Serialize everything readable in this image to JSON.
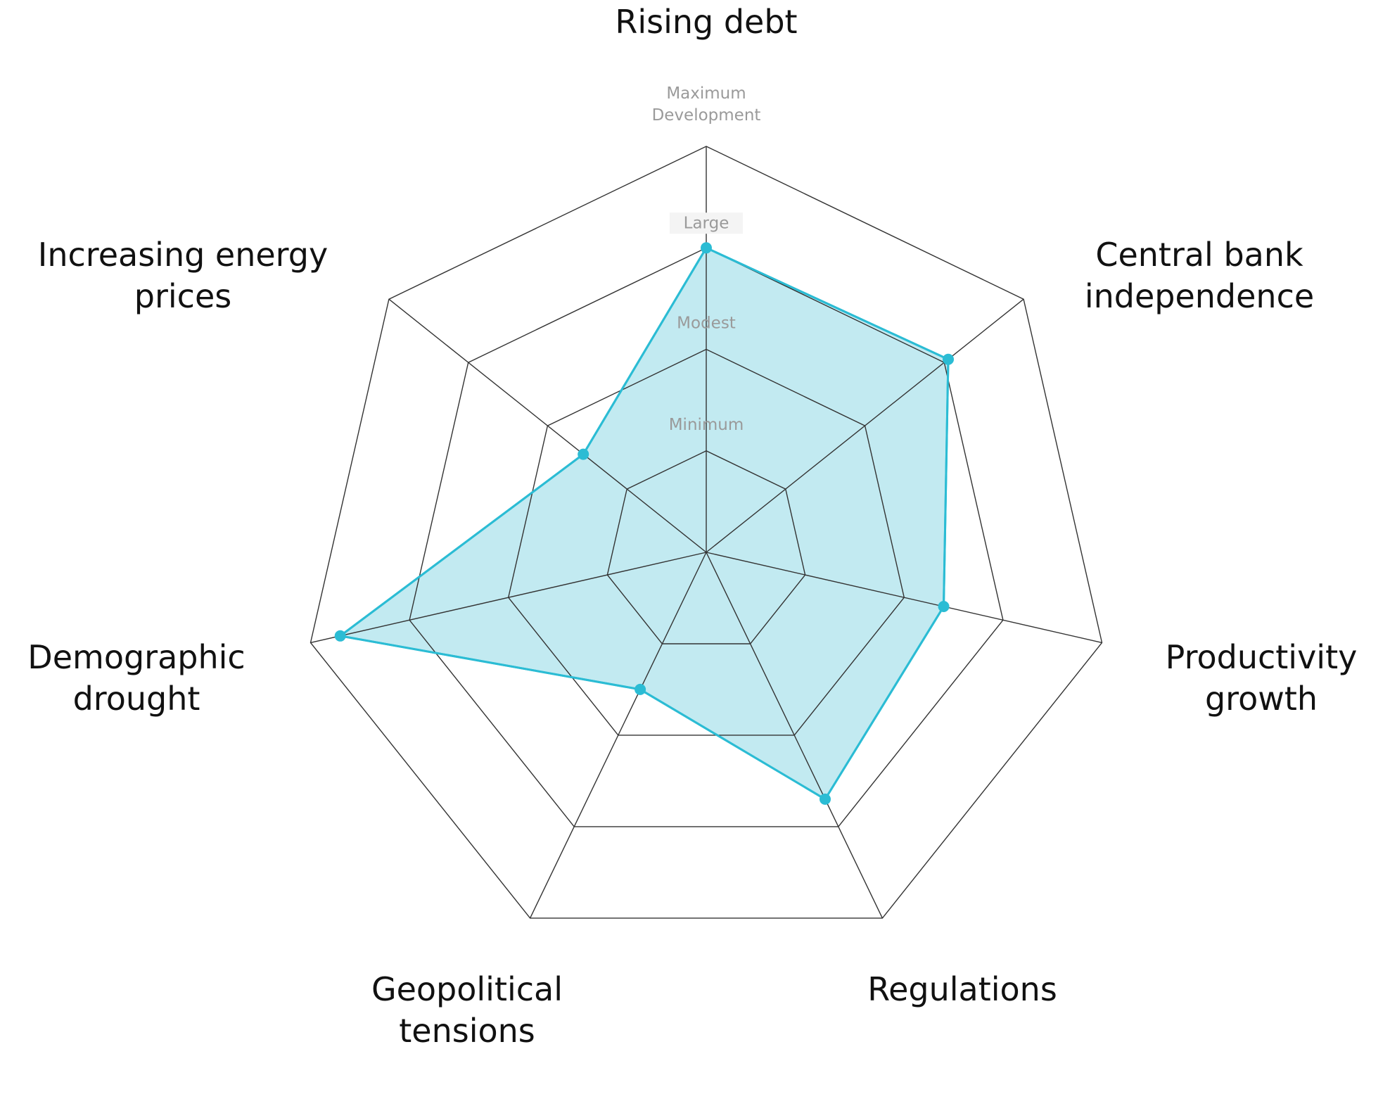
{
  "chart_data": {
    "type": "radar",
    "title": "",
    "axes": [
      {
        "label": [
          "Rising debt"
        ],
        "value": 3.0
      },
      {
        "label": [
          "Central bank",
          "independence"
        ],
        "value": 3.05
      },
      {
        "label": [
          "Productivity",
          "growth"
        ],
        "value": 2.4
      },
      {
        "label": [
          "Regulations"
        ],
        "value": 2.7
      },
      {
        "label": [
          "Geopolitical",
          "tensions"
        ],
        "value": 1.5
      },
      {
        "label": [
          "Demographic",
          "drought"
        ],
        "value": 3.7
      },
      {
        "label": [
          "Increasing energy",
          "prices"
        ],
        "value": 1.55
      }
    ],
    "levels": [
      {
        "value": 1,
        "label": [
          "Minimum"
        ]
      },
      {
        "value": 2,
        "label": [
          "Modest"
        ]
      },
      {
        "value": 3,
        "label": [
          "Large"
        ]
      },
      {
        "value": 4,
        "label": [
          "Maximum",
          "Development"
        ]
      }
    ],
    "range": [
      0,
      4
    ],
    "colors": {
      "series": "#2bbcd4",
      "fill": "#bfe9f0",
      "grid": "#333333"
    }
  }
}
